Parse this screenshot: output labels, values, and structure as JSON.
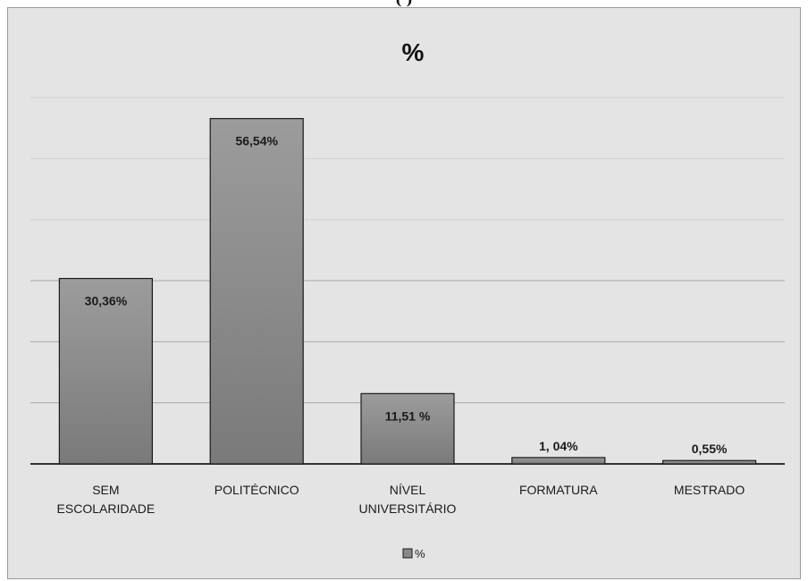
{
  "header_text": "(   )",
  "chart_data": {
    "type": "bar",
    "title": "%",
    "categories": [
      [
        "SEM",
        "ESCOLARIDADE"
      ],
      [
        "POLITÉCNICO"
      ],
      [
        "NÍVEL",
        "UNIVERSITÁRIO"
      ],
      [
        "FORMATURA"
      ],
      [
        "MESTRADO"
      ]
    ],
    "series": [
      {
        "name": "%",
        "values": [
          30.36,
          56.54,
          11.51,
          1.04,
          0.55
        ],
        "labels": [
          "30,36%",
          "56,54%",
          "11,51 %",
          "1, 04%",
          "0,55%"
        ]
      }
    ],
    "ylim": [
      0,
      60
    ],
    "ystep": 10,
    "grid": true,
    "legend": "bottom-center",
    "bar_color": "#8a8a8a"
  }
}
